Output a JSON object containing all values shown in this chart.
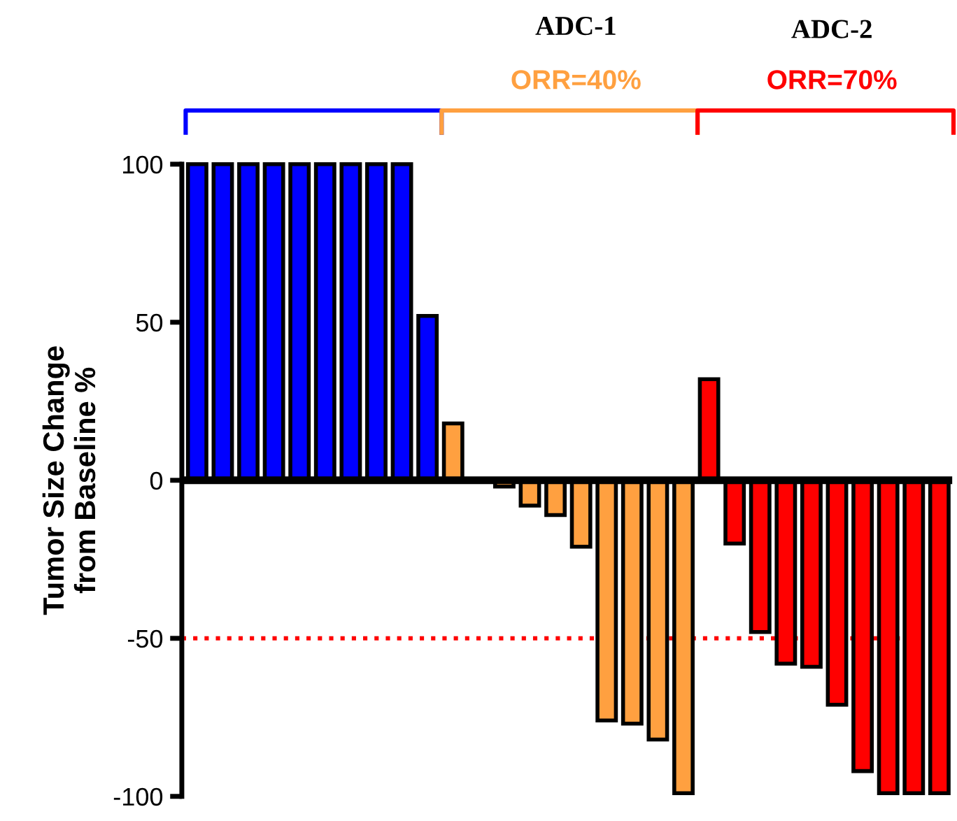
{
  "chart_data": {
    "type": "bar",
    "ylabel": "Tumor Size Change\nfrom Baseline %",
    "categories": [
      null,
      null,
      null,
      null,
      null,
      null,
      null,
      null,
      null,
      null,
      null,
      null,
      null,
      null,
      null,
      null,
      null,
      null,
      null,
      null,
      null,
      null,
      null,
      null,
      null,
      null,
      null,
      null,
      null,
      null
    ],
    "values": [
      100,
      100,
      100,
      100,
      100,
      100,
      100,
      100,
      100,
      52,
      18,
      null,
      -2,
      -8,
      -11,
      -21,
      -76,
      -77,
      -82,
      -99,
      32,
      -20,
      -48,
      -58,
      -59,
      -71,
      -92,
      -99,
      -99,
      -99
    ],
    "colors": [
      "#0000ff",
      "#0000ff",
      "#0000ff",
      "#0000ff",
      "#0000ff",
      "#0000ff",
      "#0000ff",
      "#0000ff",
      "#0000ff",
      "#0000ff",
      "#ffa040",
      "#ffa040",
      "#ffa040",
      "#ffa040",
      "#ffa040",
      "#ffa040",
      "#ffa040",
      "#ffa040",
      "#ffa040",
      "#ffa040",
      "#ff0000",
      "#ff0000",
      "#ff0000",
      "#ff0000",
      "#ff0000",
      "#ff0000",
      "#ff0000",
      "#ff0000",
      "#ff0000",
      "#ff0000"
    ],
    "ylim": [
      -100,
      100
    ],
    "yticks": [
      -100,
      -50,
      0,
      50,
      100
    ],
    "ref_lines": [
      {
        "axis": "y",
        "value": -50,
        "color": "#ff0000",
        "line_style": "dotted"
      }
    ],
    "annotations": [
      "ADC-1",
      "ADC-2",
      "ORR=40%",
      "ORR=70%"
    ],
    "tick_labels": "y",
    "grid": false,
    "legend": false
  }
}
